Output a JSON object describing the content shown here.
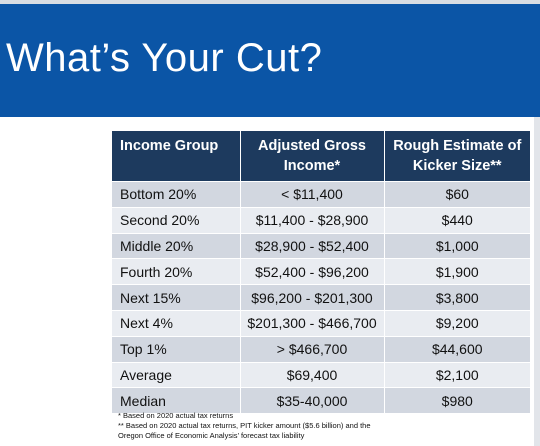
{
  "slide": {
    "title": "What’s Your Cut?"
  },
  "table": {
    "headers": [
      "Income Group",
      "Adjusted Gross Income*",
      "Rough Estimate of Kicker Size**"
    ],
    "rows": [
      [
        "Bottom 20%",
        "< $11,400",
        "$60"
      ],
      [
        "Second 20%",
        "$11,400 - $28,900",
        "$440"
      ],
      [
        "Middle 20%",
        "$28,900 - $52,400",
        "$1,000"
      ],
      [
        "Fourth 20%",
        "$52,400 - $96,200",
        "$1,900"
      ],
      [
        "Next 15%",
        "$96,200 - $201,300",
        "$3,800"
      ],
      [
        "Next 4%",
        "$201,300 - $466,700",
        "$9,200"
      ],
      [
        "Top 1%",
        "> $466,700",
        "$44,600"
      ],
      [
        "Average",
        "$69,400",
        "$2,100"
      ],
      [
        "Median",
        "$35-40,000",
        "$980"
      ]
    ]
  },
  "footnotes": [
    "* Based on 2020 actual tax returns",
    "** Based on 2020 actual tax returns, PIT kicker amount ($5.6 billion) and the",
    "Oregon Office of Economic Analysis’ forecast tax liability"
  ],
  "colors": {
    "banner": "#0b55a6",
    "header": "#1d3a5e",
    "row_dark": "#d2d7e0",
    "row_light": "#e9ecf1"
  }
}
